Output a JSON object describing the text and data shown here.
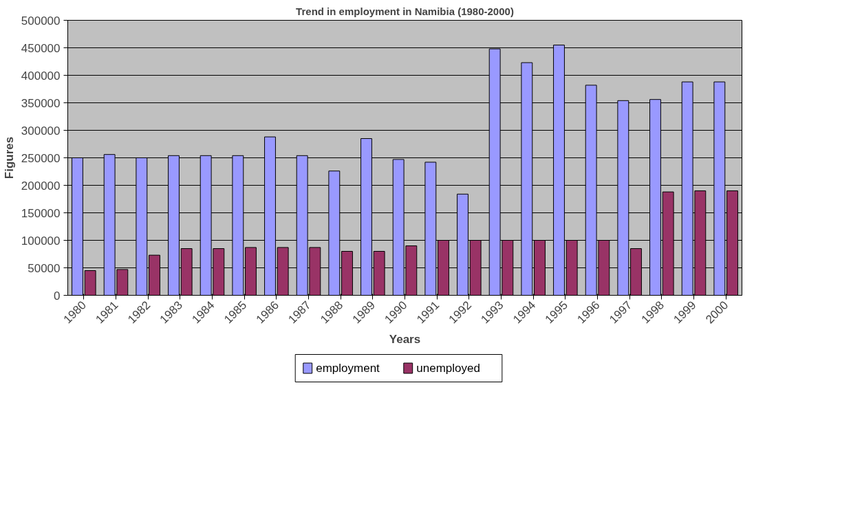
{
  "chart_data": {
    "type": "bar",
    "title": "Trend in employment in Namibia (1980-2000)",
    "xlabel": "Years",
    "ylabel": "Figures",
    "categories": [
      "1980",
      "1981",
      "1982",
      "1983",
      "1984",
      "1985",
      "1986",
      "1987",
      "1988",
      "1989",
      "1990",
      "1991",
      "1992",
      "1993",
      "1994",
      "1995",
      "1996",
      "1997",
      "1998",
      "1999",
      "2000"
    ],
    "series": [
      {
        "name": "employment",
        "color": "#9999ff",
        "values": [
          250000,
          256000,
          250000,
          254000,
          254000,
          254000,
          288000,
          254000,
          226000,
          285000,
          247000,
          242000,
          184000,
          448000,
          423000,
          455000,
          382000,
          354000,
          356000,
          388000,
          388000
        ]
      },
      {
        "name": "unemployed",
        "color": "#993366",
        "values": [
          45000,
          47000,
          73000,
          85000,
          85000,
          87000,
          87000,
          87000,
          80000,
          80000,
          90000,
          100000,
          100000,
          100000,
          100000,
          100000,
          100000,
          85000,
          188000,
          190000,
          190000
        ]
      }
    ],
    "ylim": [
      0,
      500000
    ],
    "yticks": [
      0,
      50000,
      100000,
      150000,
      200000,
      250000,
      300000,
      350000,
      400000,
      450000,
      500000
    ],
    "grid": "y",
    "legend": "bottom"
  }
}
